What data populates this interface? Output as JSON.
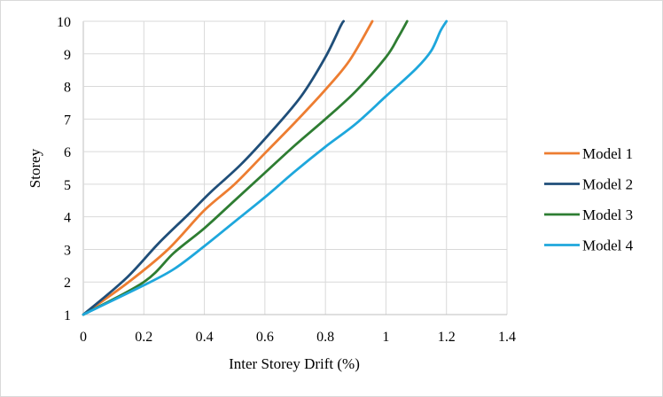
{
  "chart_data": {
    "type": "line",
    "title": "",
    "xlabel": "Inter Storey Drift (%)",
    "ylabel": "Storey",
    "xlim": [
      0,
      1.4
    ],
    "ylim": [
      1,
      10
    ],
    "xticks": [
      "0",
      "0.2",
      "0.4",
      "0.6",
      "0.8",
      "1",
      "1.2",
      "1.4"
    ],
    "yticks": [
      "1",
      "2",
      "3",
      "4",
      "5",
      "6",
      "7",
      "8",
      "9",
      "10"
    ],
    "grid": true,
    "legend_position": "right",
    "series": [
      {
        "name": "Model 1",
        "color": "#ed7d31",
        "points": [
          [
            0,
            1
          ],
          [
            0.15,
            2
          ],
          [
            0.28,
            3
          ],
          [
            0.4,
            4.2
          ],
          [
            0.5,
            5
          ],
          [
            0.6,
            5.95
          ],
          [
            0.7,
            6.9
          ],
          [
            0.8,
            7.9
          ],
          [
            0.88,
            8.8
          ],
          [
            0.955,
            10
          ]
        ]
      },
      {
        "name": "Model 2",
        "color": "#1f4e79",
        "points": [
          [
            0,
            1
          ],
          [
            0.14,
            2.1
          ],
          [
            0.25,
            3.2
          ],
          [
            0.35,
            4.1
          ],
          [
            0.42,
            4.75
          ],
          [
            0.52,
            5.6
          ],
          [
            0.62,
            6.6
          ],
          [
            0.72,
            7.7
          ],
          [
            0.8,
            8.9
          ],
          [
            0.85,
            9.85
          ],
          [
            0.86,
            10
          ]
        ]
      },
      {
        "name": "Model 3",
        "color": "#2e7d32",
        "points": [
          [
            0,
            1
          ],
          [
            0.2,
            2
          ],
          [
            0.3,
            2.9
          ],
          [
            0.4,
            3.65
          ],
          [
            0.5,
            4.5
          ],
          [
            0.6,
            5.35
          ],
          [
            0.7,
            6.2
          ],
          [
            0.8,
            7
          ],
          [
            0.9,
            7.85
          ],
          [
            1.0,
            8.9
          ],
          [
            1.04,
            9.5
          ],
          [
            1.07,
            10
          ]
        ]
      },
      {
        "name": "Model 4",
        "color": "#1ea7dc",
        "points": [
          [
            0,
            1
          ],
          [
            0.2,
            1.9
          ],
          [
            0.3,
            2.4
          ],
          [
            0.4,
            3.1
          ],
          [
            0.5,
            3.85
          ],
          [
            0.6,
            4.6
          ],
          [
            0.7,
            5.4
          ],
          [
            0.8,
            6.15
          ],
          [
            0.9,
            6.85
          ],
          [
            1.0,
            7.7
          ],
          [
            1.1,
            8.55
          ],
          [
            1.15,
            9.1
          ],
          [
            1.18,
            9.7
          ],
          [
            1.2,
            10
          ]
        ]
      }
    ]
  }
}
